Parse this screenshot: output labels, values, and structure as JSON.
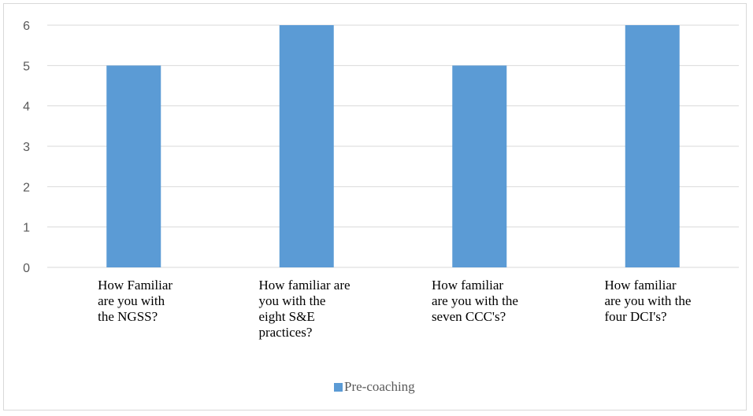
{
  "chart_data": {
    "type": "bar",
    "categories": [
      [
        "How Familiar",
        "are you with",
        "the NGSS?"
      ],
      [
        "How familiar are",
        "you with the",
        "eight S&E",
        "practices?"
      ],
      [
        "How familiar",
        "are you with the",
        "seven CCC's?"
      ],
      [
        "How familiar",
        "are you with the",
        "four DCI's?"
      ]
    ],
    "series": [
      {
        "name": "Pre-coaching",
        "values": [
          5,
          6,
          5,
          6
        ],
        "color": "#5b9bd5"
      }
    ],
    "ylim": [
      0,
      6
    ],
    "yticks": [
      0,
      1,
      2,
      3,
      4,
      5,
      6
    ],
    "grid": true,
    "legend_position": "bottom",
    "gridline_color": "#d9d9d9"
  }
}
